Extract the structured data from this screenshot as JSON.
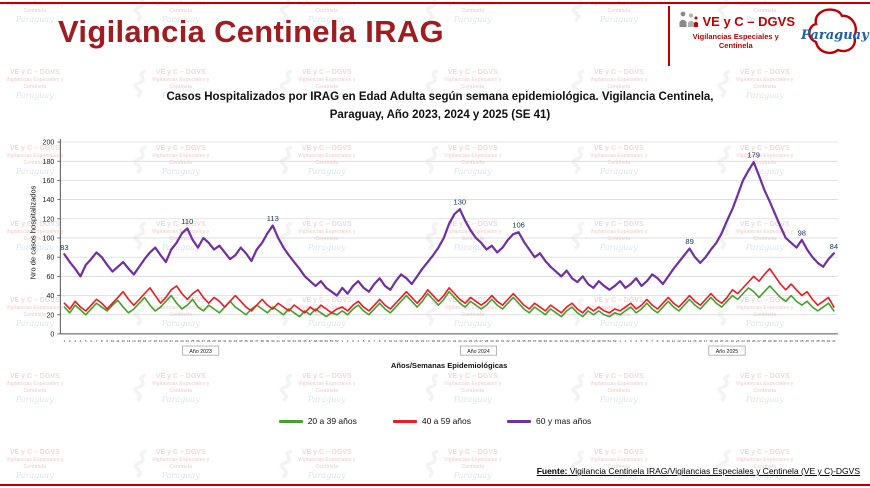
{
  "page": {
    "title": "Vigilancia Centinela IRAG"
  },
  "logo": {
    "line1": "VE y C – DGVS",
    "line2": "Vigilancias Especiales y",
    "line3": "Centinela",
    "country": "Paraguay"
  },
  "watermark": {
    "line1": "VE y C – DGVS",
    "line2": "Vigilancias Especiales y",
    "line3": "Centinela",
    "country": "Paraguay"
  },
  "source": {
    "label": "Fuente:",
    "text": " Vigilancia  Centinela IRAG/Vigilancias Especiales y Centinela (VE y C)-DGVS"
  },
  "colors": {
    "accent_red": "#c00000",
    "title_maroon": "#9e1d20",
    "paraguay_blue": "#1f5fa8",
    "annotation_navy": "#1f3864"
  },
  "chart_data": {
    "type": "line",
    "title_line1": "Casos Hospitalizados por IRAG en Edad Adulta según semana epidemiológica. Vigilancia Centinela,",
    "title_line2": "Paraguay, Año 2023, 2024 y 2025 (SE 41)",
    "ylabel": "Nro de casos hospitalizados",
    "xlabel": "Años/Semanas Epidemiológicas",
    "ylim": [
      0,
      200
    ],
    "ytick_step": 20,
    "grid": "horizontal",
    "legend_position": "bottom",
    "years": [
      {
        "label": "Año 2023",
        "weeks": 52
      },
      {
        "label": "Año 2024",
        "weeks": 52
      },
      {
        "label": "Año 2025",
        "weeks": 41
      }
    ],
    "series": [
      {
        "name": "20 a 39 años",
        "color": "#45a12e",
        "values": [
          28,
          22,
          30,
          25,
          20,
          26,
          32,
          28,
          24,
          30,
          35,
          28,
          22,
          26,
          32,
          38,
          30,
          24,
          28,
          34,
          40,
          32,
          26,
          30,
          36,
          28,
          24,
          30,
          26,
          22,
          28,
          34,
          28,
          24,
          20,
          26,
          30,
          26,
          22,
          28,
          24,
          20,
          26,
          22,
          18,
          24,
          20,
          26,
          22,
          18,
          22,
          20,
          24,
          20,
          26,
          30,
          24,
          20,
          26,
          32,
          26,
          22,
          28,
          34,
          40,
          34,
          28,
          34,
          42,
          36,
          30,
          36,
          44,
          38,
          32,
          28,
          34,
          30,
          26,
          30,
          36,
          30,
          26,
          32,
          38,
          32,
          26,
          22,
          28,
          24,
          20,
          26,
          22,
          18,
          24,
          28,
          22,
          18,
          24,
          20,
          24,
          20,
          18,
          22,
          20,
          24,
          28,
          22,
          26,
          32,
          26,
          22,
          28,
          34,
          28,
          24,
          30,
          36,
          30,
          26,
          32,
          38,
          32,
          28,
          34,
          40,
          36,
          42,
          48,
          44,
          38,
          44,
          50,
          44,
          38,
          34,
          40,
          34,
          30,
          34,
          28,
          24,
          28,
          32,
          24
        ]
      },
      {
        "name": "40 a 59 años",
        "color": "#eb1c24",
        "values": [
          32,
          26,
          34,
          28,
          24,
          30,
          36,
          32,
          26,
          32,
          38,
          44,
          36,
          30,
          36,
          42,
          48,
          40,
          32,
          38,
          46,
          50,
          42,
          36,
          42,
          46,
          38,
          32,
          38,
          34,
          28,
          34,
          40,
          34,
          28,
          24,
          30,
          36,
          30,
          26,
          32,
          28,
          24,
          30,
          26,
          22,
          28,
          24,
          30,
          26,
          22,
          26,
          28,
          24,
          30,
          34,
          28,
          24,
          30,
          36,
          30,
          26,
          32,
          38,
          44,
          38,
          32,
          38,
          46,
          40,
          34,
          40,
          48,
          42,
          36,
          32,
          38,
          34,
          30,
          34,
          40,
          34,
          30,
          36,
          42,
          36,
          30,
          26,
          32,
          28,
          24,
          30,
          26,
          22,
          28,
          32,
          26,
          22,
          28,
          24,
          28,
          24,
          22,
          26,
          24,
          28,
          32,
          26,
          30,
          36,
          30,
          26,
          32,
          38,
          32,
          28,
          34,
          40,
          34,
          30,
          36,
          42,
          36,
          32,
          38,
          46,
          42,
          48,
          54,
          60,
          55,
          62,
          68,
          60,
          52,
          46,
          52,
          46,
          40,
          44,
          36,
          30,
          34,
          38,
          28
        ]
      },
      {
        "name": "60 y mas años",
        "color": "#7030a0",
        "values": [
          83,
          75,
          68,
          60,
          72,
          78,
          85,
          80,
          72,
          65,
          70,
          75,
          68,
          62,
          70,
          78,
          85,
          90,
          82,
          75,
          88,
          95,
          105,
          110,
          98,
          90,
          100,
          95,
          88,
          92,
          85,
          78,
          82,
          90,
          84,
          76,
          88,
          95,
          105,
          113,
          100,
          90,
          82,
          75,
          68,
          60,
          55,
          50,
          55,
          48,
          44,
          40,
          48,
          42,
          50,
          55,
          48,
          44,
          52,
          58,
          50,
          46,
          55,
          62,
          58,
          52,
          60,
          68,
          75,
          82,
          90,
          100,
          115,
          125,
          130,
          118,
          108,
          100,
          95,
          88,
          92,
          85,
          90,
          98,
          104,
          106,
          96,
          88,
          80,
          84,
          76,
          70,
          65,
          60,
          66,
          58,
          54,
          60,
          52,
          48,
          55,
          50,
          46,
          50,
          55,
          48,
          52,
          58,
          50,
          55,
          62,
          58,
          52,
          60,
          68,
          75,
          82,
          89,
          80,
          74,
          80,
          88,
          95,
          105,
          118,
          130,
          145,
          160,
          170,
          179,
          165,
          150,
          138,
          125,
          112,
          100,
          95,
          90,
          98,
          88,
          80,
          74,
          70,
          78,
          84
        ]
      }
    ],
    "annotations": [
      {
        "week_index": 0,
        "text": "83"
      },
      {
        "week_index": 23,
        "text": "110"
      },
      {
        "week_index": 39,
        "text": "113"
      },
      {
        "week_index": 74,
        "text": "130"
      },
      {
        "week_index": 85,
        "text": "106"
      },
      {
        "week_index": 117,
        "text": "89"
      },
      {
        "week_index": 129,
        "text": "179"
      },
      {
        "week_index": 138,
        "text": "98"
      },
      {
        "week_index": 144,
        "text": "84"
      }
    ]
  }
}
